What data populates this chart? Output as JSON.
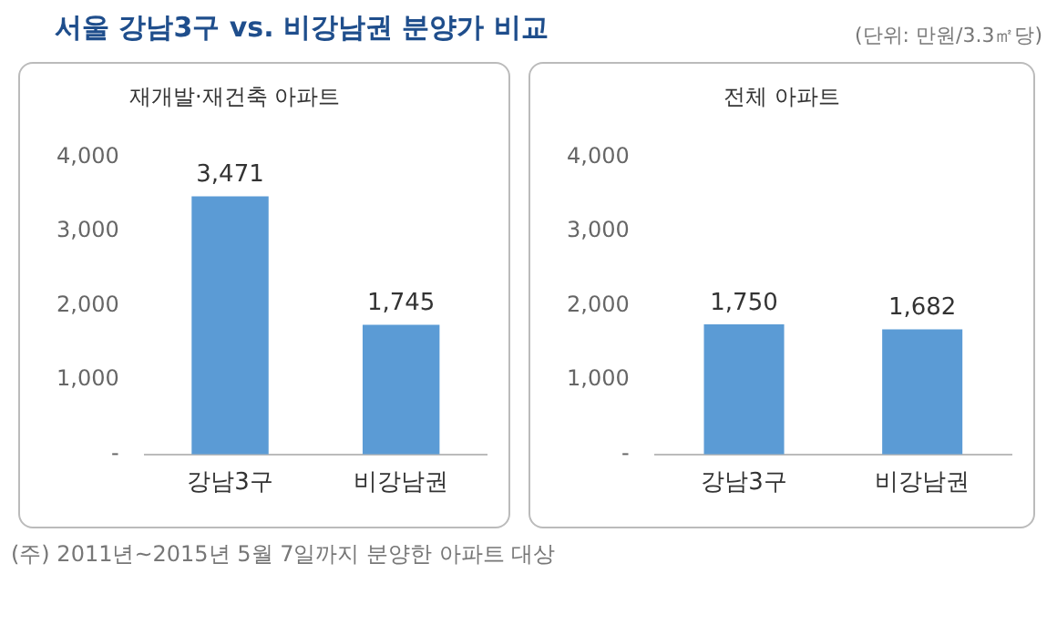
{
  "chart_data": [
    {
      "type": "bar",
      "title": "서울 강남3구 vs. 비강남권 분양가 비교",
      "subtitle": "재개발·재건축 아파트",
      "annotations": [
        "(단위: 만원/3.3㎡당)",
        "(주) 2011년~2015년 5월 7일까지 분양한 아파트 대상"
      ],
      "categories": [
        "강남3구",
        "비강남권"
      ],
      "values": [
        3471,
        1745
      ],
      "value_labels": [
        "3,471",
        "1,745"
      ],
      "color": "#5b9bd5",
      "ylim": [
        0,
        4000
      ],
      "yticks": [
        {
          "value": 0,
          "label": "-"
        },
        {
          "value": 1000,
          "label": "1,000"
        },
        {
          "value": 2000,
          "label": "2,000"
        },
        {
          "value": 3000,
          "label": "3,000"
        },
        {
          "value": 4000,
          "label": "4,000"
        }
      ],
      "grid": false
    },
    {
      "type": "bar",
      "title": "전체 아파트",
      "categories": [
        "강남3구",
        "비강남권"
      ],
      "values": [
        1750,
        1682
      ],
      "value_labels": [
        "1,750",
        "1,682"
      ],
      "color": "#5b9bd5",
      "ylim": [
        0,
        4000
      ],
      "yticks": [
        {
          "value": 0,
          "label": "-"
        },
        {
          "value": 1000,
          "label": "1,000"
        },
        {
          "value": 2000,
          "label": "2,000"
        },
        {
          "value": 3000,
          "label": "3,000"
        },
        {
          "value": 4000,
          "label": "4,000"
        }
      ],
      "grid": false
    }
  ]
}
